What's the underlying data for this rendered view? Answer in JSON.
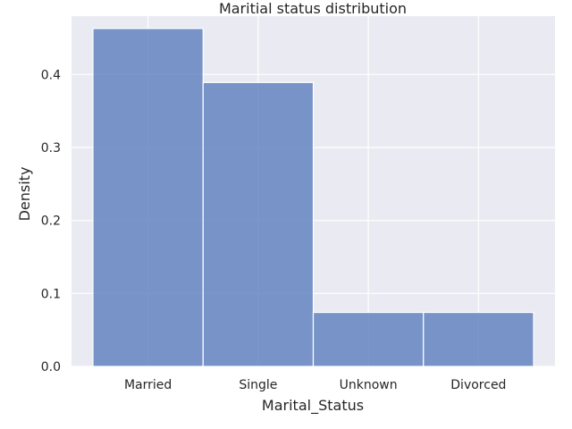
{
  "chart_data": {
    "type": "bar",
    "title": "Maritial status distribution",
    "xlabel": "Marital_Status",
    "ylabel": "Density",
    "categories": [
      "Married",
      "Single",
      "Unknown",
      "Divorced"
    ],
    "values": [
      0.463,
      0.389,
      0.074,
      0.074
    ],
    "ylim": [
      0,
      0.48
    ],
    "yticks": [
      0.0,
      0.1,
      0.2,
      0.3,
      0.4
    ],
    "ytick_labels": [
      "0.0",
      "0.1",
      "0.2",
      "0.3",
      "0.4"
    ],
    "grid": true,
    "colors": {
      "bar": "#5a7dbd",
      "background": "#eaeaf2",
      "grid": "#ffffff"
    }
  }
}
